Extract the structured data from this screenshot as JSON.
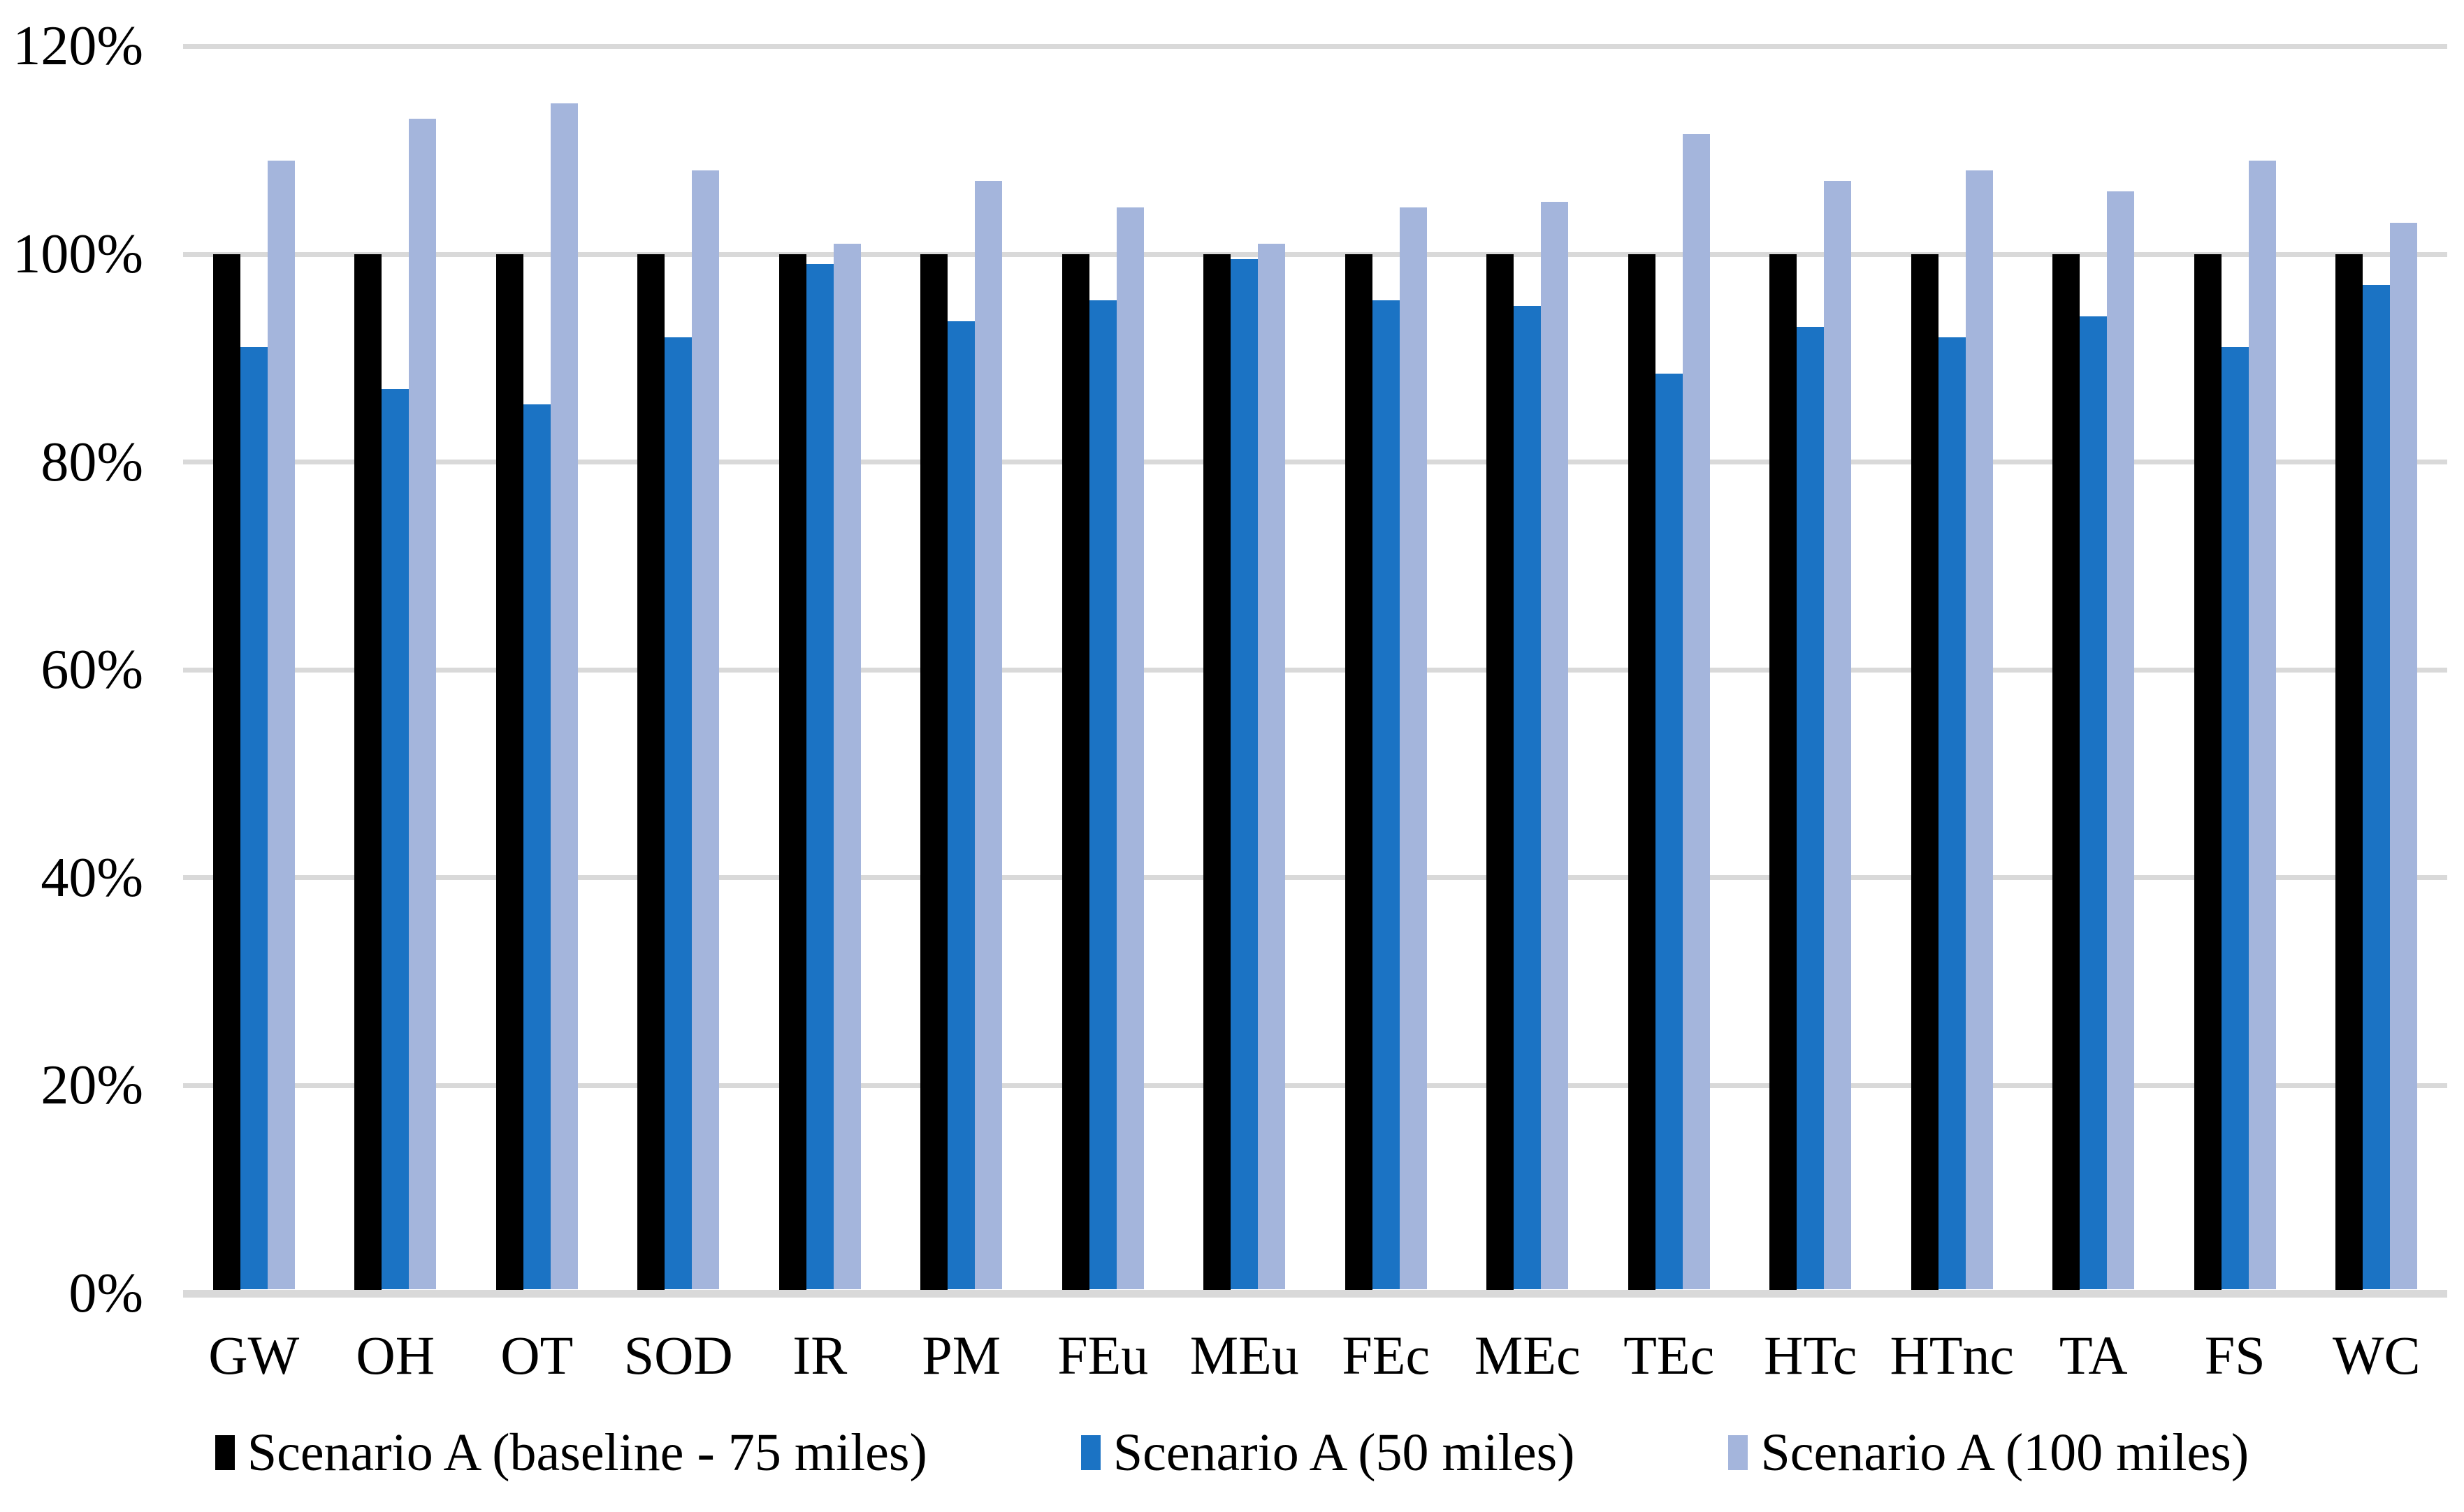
{
  "chart_data": {
    "type": "bar",
    "title": "",
    "xlabel": "",
    "ylabel": "",
    "categories": [
      "GW",
      "OH",
      "OT",
      "SOD",
      "IR",
      "PM",
      "FEu",
      "MEu",
      "FEc",
      "MEc",
      "TEc",
      "HTc",
      "HTnc",
      "TA",
      "FS",
      "WC"
    ],
    "series": [
      {
        "name": "Scenario A (baseline - 75 miles)",
        "color": "#000000",
        "values": [
          100,
          100,
          100,
          100,
          100,
          100,
          100,
          100,
          100,
          100,
          100,
          100,
          100,
          100,
          100,
          100
        ]
      },
      {
        "name": "Scenario A (50 miles)",
        "color": "#1B73C4",
        "values": [
          91,
          87,
          85.5,
          92,
          99,
          93.5,
          95.5,
          99.5,
          95.5,
          95,
          88.5,
          93,
          92,
          94,
          91,
          97
        ]
      },
      {
        "name": "Scenario A (100 miles)",
        "color": "#A4B5DC",
        "values": [
          109,
          113,
          114.5,
          108,
          101,
          107,
          104.5,
          101,
          104.5,
          105,
          111.5,
          107,
          108,
          106,
          109,
          103
        ]
      }
    ],
    "ylim": [
      0,
      120
    ],
    "ytick_step": 20,
    "yticks": [
      "0%",
      "20%",
      "40%",
      "60%",
      "80%",
      "100%",
      "120%"
    ],
    "grid": true,
    "gridline_color": "#D9D9D9",
    "axis_line_color": "#D9D9D9",
    "legend_position": "bottom"
  }
}
